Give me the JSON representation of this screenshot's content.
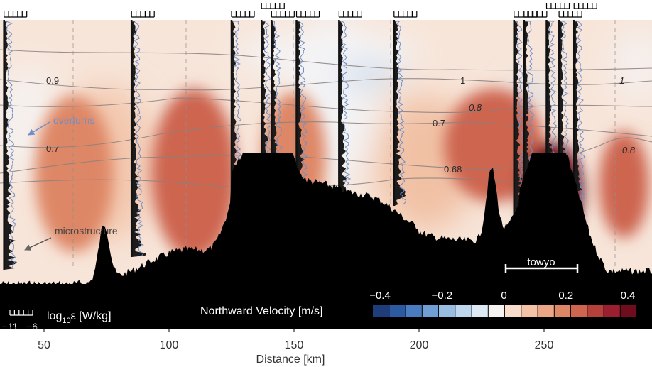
{
  "chart_data": {
    "type": "heatmap",
    "title": "",
    "xlabel": "Distance [km]",
    "x_ticks": [
      50,
      100,
      150,
      200,
      250
    ],
    "xlim": [
      30,
      292
    ],
    "colorbar": {
      "label": "Northward Velocity [m/s]",
      "ticks": [
        "−0.4",
        "−0.2",
        "0",
        "0.2",
        "0.4"
      ],
      "range": [
        -0.45,
        0.45
      ],
      "colors": [
        "#1f3d7a",
        "#2c5aa0",
        "#4a7cc0",
        "#6f9fd4",
        "#98bde3",
        "#bed6ee",
        "#dde9f4",
        "#f6f2ef",
        "#f9dccb",
        "#f4c3a6",
        "#eca685",
        "#de8766",
        "#cd654f",
        "#b6403a",
        "#9b1f30",
        "#6f0d1f"
      ]
    },
    "epsilon_scale": {
      "label_prefix": "log",
      "label_sub": "10",
      "label_suffix": "ε [W/kg]",
      "tick_min": "−11",
      "tick_max": "−6"
    },
    "profile_stations_km": [
      34,
      85,
      125,
      137,
      141,
      151,
      168,
      190,
      238,
      242,
      251,
      256,
      262
    ],
    "contour_labels": [
      "0.9",
      "0.7",
      "1",
      "0.8",
      "0.7",
      "0.68",
      "1",
      "0.8"
    ],
    "annotations": {
      "overturns": "overturns",
      "microstructure": "microstructure",
      "towyo": "towyo"
    },
    "velocity_highlights": [
      {
        "x_km": 62,
        "v": 0.22
      },
      {
        "x_km": 110,
        "v": 0.25
      },
      {
        "x_km": 150,
        "v": 0.18
      },
      {
        "x_km": 230,
        "v": 0.24
      },
      {
        "x_km": 253,
        "v": 0.42
      },
      {
        "x_km": 282,
        "v": 0.26
      }
    ]
  }
}
